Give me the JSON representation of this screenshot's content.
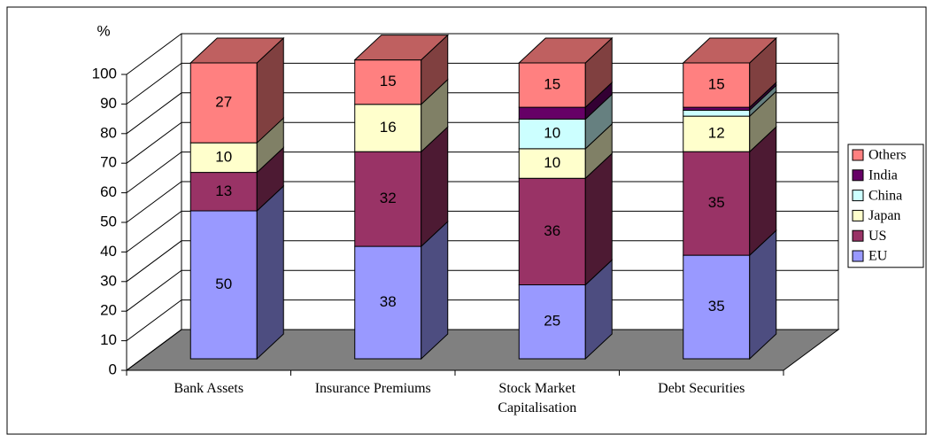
{
  "chart_data": {
    "type": "bar3d_stacked",
    "y_label": "%",
    "categories": [
      "Bank Assets",
      "Insurance Premiums",
      "Stock Market Capitalisation",
      "Debt Securities"
    ],
    "series": [
      {
        "name": "EU",
        "color": "#9999ff",
        "values": [
          50,
          38,
          25,
          35
        ]
      },
      {
        "name": "US",
        "color": "#993366",
        "values": [
          13,
          32,
          36,
          35
        ]
      },
      {
        "name": "Japan",
        "color": "#ffffcc",
        "values": [
          10,
          16,
          10,
          12
        ]
      },
      {
        "name": "China",
        "color": "#ccffff",
        "values": [
          0,
          0,
          10,
          2
        ]
      },
      {
        "name": "India",
        "color": "#660066",
        "values": [
          0,
          0,
          4,
          1
        ]
      },
      {
        "name": "Others",
        "color": "#ff8080",
        "values": [
          27,
          15,
          15,
          15
        ]
      }
    ],
    "ylim": [
      0,
      100
    ],
    "yticks": [
      0,
      10,
      20,
      30,
      40,
      50,
      60,
      70,
      80,
      90,
      100
    ],
    "grid": true,
    "legend": "right"
  }
}
